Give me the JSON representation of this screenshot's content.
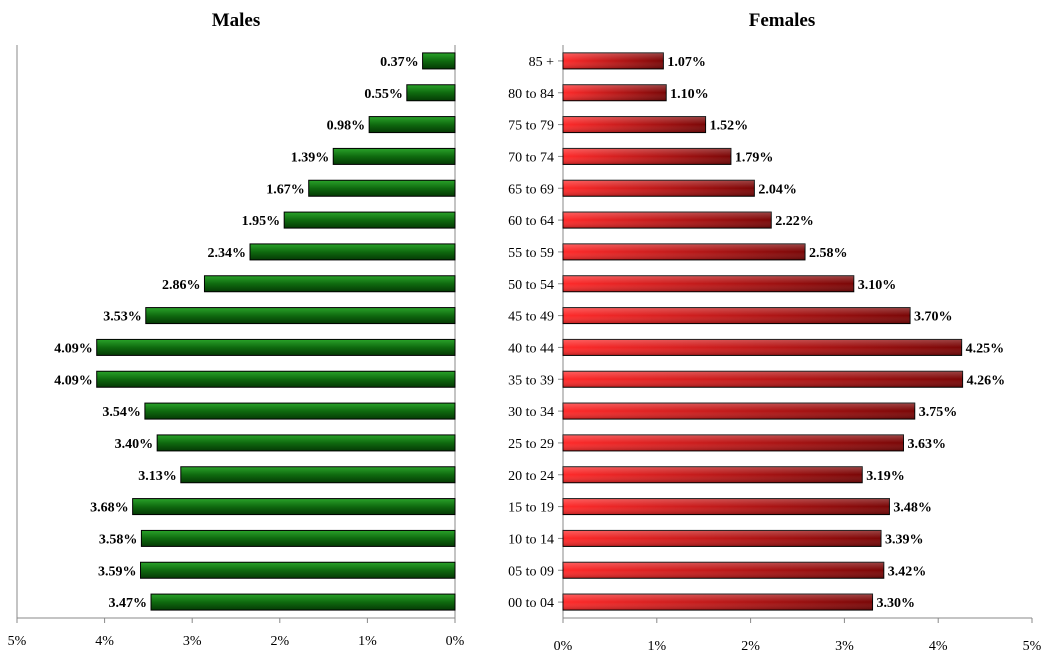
{
  "chart_data": [
    {
      "type": "bar",
      "orientation": "horizontal",
      "title": "Males",
      "x_direction": "reversed",
      "xlim": [
        0,
        5
      ],
      "xticks": [
        "5%",
        "4%",
        "3%",
        "2%",
        "1%",
        "0%"
      ],
      "categories": [
        "00 to 04",
        "05 to 09",
        "10 to 14",
        "15 to 19",
        "20 to 24",
        "25 to 29",
        "30 to 34",
        "35 to 39",
        "40 to 44",
        "45 to 49",
        "50 to 54",
        "55 to 59",
        "60 to 64",
        "65 to 69",
        "70 to 74",
        "75 to 79",
        "80 to 84",
        "85 +"
      ],
      "values": [
        3.47,
        3.59,
        3.58,
        3.68,
        3.13,
        3.4,
        3.54,
        4.09,
        4.09,
        3.53,
        2.86,
        2.34,
        1.95,
        1.67,
        1.39,
        0.98,
        0.55,
        0.37
      ],
      "labels": [
        "3.47%",
        "3.59%",
        "3.58%",
        "3.68%",
        "3.13%",
        "3.40%",
        "3.54%",
        "4.09%",
        "4.09%",
        "3.53%",
        "2.86%",
        "2.34%",
        "1.95%",
        "1.67%",
        "1.39%",
        "0.98%",
        "0.55%",
        "0.37%"
      ],
      "color": "#1f7a1f"
    },
    {
      "type": "bar",
      "orientation": "horizontal",
      "title": "Females",
      "xlim": [
        0,
        5
      ],
      "xticks": [
        "0%",
        "1%",
        "2%",
        "3%",
        "4%",
        "5%"
      ],
      "categories": [
        "00 to 04",
        "05 to 09",
        "10 to 14",
        "15 to 19",
        "20 to 24",
        "25 to 29",
        "30 to 34",
        "35 to 39",
        "40 to 44",
        "45 to 49",
        "50 to 54",
        "55 to 59",
        "60 to 64",
        "65 to 69",
        "70 to 74",
        "75 to 79",
        "80 to 84",
        "85 +"
      ],
      "values": [
        3.3,
        3.42,
        3.39,
        3.48,
        3.19,
        3.63,
        3.75,
        4.26,
        4.25,
        3.7,
        3.1,
        2.58,
        2.22,
        2.04,
        1.79,
        1.52,
        1.1,
        1.07
      ],
      "labels": [
        "3.30%",
        "3.42%",
        "3.39%",
        "3.48%",
        "3.19%",
        "3.63%",
        "3.75%",
        "4.26%",
        "4.25%",
        "3.70%",
        "3.10%",
        "2.58%",
        "2.22%",
        "2.04%",
        "1.79%",
        "1.52%",
        "1.10%",
        "1.07%"
      ],
      "color": "#d41414"
    }
  ]
}
